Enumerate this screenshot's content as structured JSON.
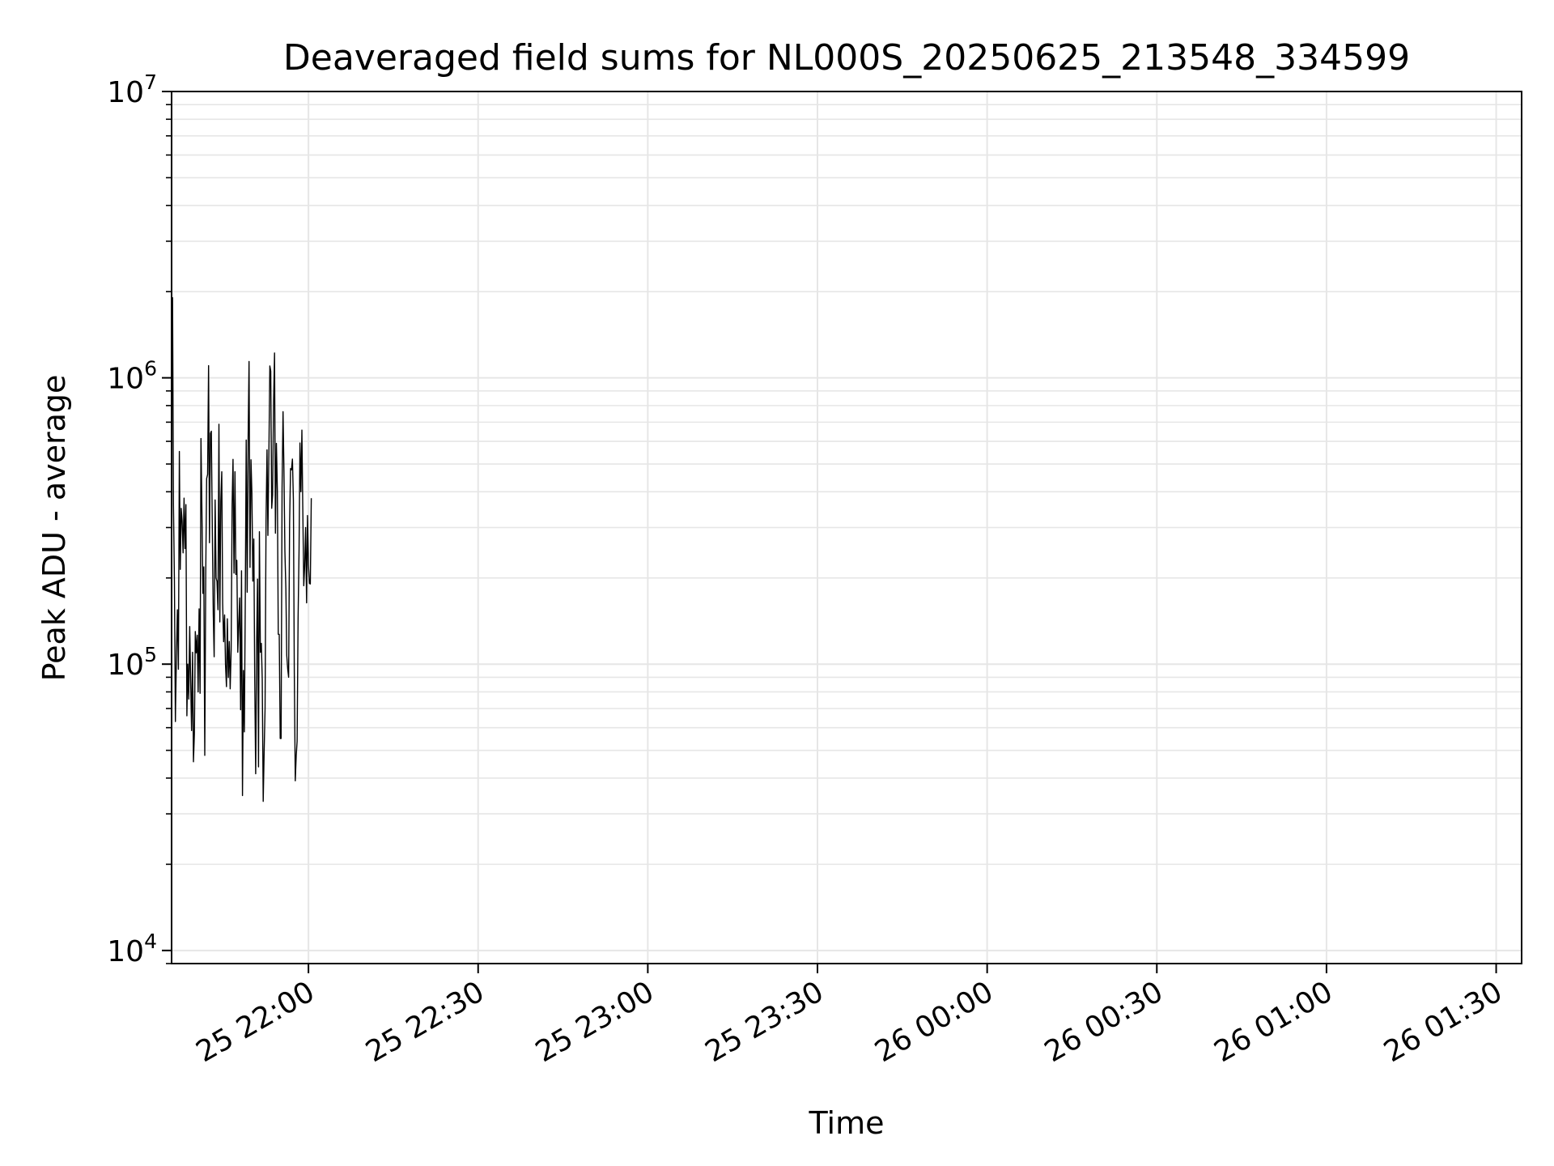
{
  "chart_data": {
    "type": "line",
    "title": "Deaveraged field sums for NL000S_20250625_213548_334599",
    "xlabel": "Time",
    "ylabel": "Peak ADU - average",
    "yscale": "log",
    "ylim": [
      9000,
      10000000
    ],
    "xlim": [
      "2025-06-25 21:35:48",
      "2025-06-26 01:34:30"
    ],
    "grid": true,
    "line_color": "#000000",
    "grid_color": "#e6e6e6",
    "x_ticks": [
      {
        "t": "2025-06-25 22:00",
        "label": "25 22:00"
      },
      {
        "t": "2025-06-25 22:30",
        "label": "25 22:30"
      },
      {
        "t": "2025-06-25 23:00",
        "label": "25 23:00"
      },
      {
        "t": "2025-06-25 23:30",
        "label": "25 23:30"
      },
      {
        "t": "2025-06-26 00:00",
        "label": "26 00:00"
      },
      {
        "t": "2025-06-26 00:30",
        "label": "26 00:30"
      },
      {
        "t": "2025-06-26 01:00",
        "label": "26 01:00"
      },
      {
        "t": "2025-06-26 01:30",
        "label": "26 01:30"
      }
    ],
    "y_ticks": [
      {
        "value": 10000,
        "base": "10",
        "exp": "4"
      },
      {
        "value": 100000,
        "base": "10",
        "exp": "5"
      },
      {
        "value": 1000000,
        "base": "10",
        "exp": "6"
      },
      {
        "value": 10000000,
        "base": "10",
        "exp": "7"
      }
    ],
    "series": [
      {
        "sample_interval_seconds": 10,
        "values": [
          [
            {
              "t": "2025-06-25 21:35:48",
              "v": 1600000
            },
            {
              "t": "2025-06-25 21:36:30",
              "v": 70000
            },
            {
              "t": "2025-06-25 21:37:30",
              "v": 350000
            },
            {
              "t": "2025-06-25 21:38:00",
              "v": 380000
            },
            {
              "t": "2025-06-25 21:38:40",
              "v": 100000
            },
            {
              "t": "2025-06-25 21:39:30",
              "v": 110000
            },
            {
              "t": "2025-06-25 21:40:00",
              "v": 130000
            },
            {
              "t": "2025-06-25 21:40:30",
              "v": 80000
            },
            {
              "t": "2025-06-25 21:41:10",
              "v": 340000
            },
            {
              "t": "2025-06-25 21:41:40",
              "v": 48000
            },
            {
              "t": "2025-06-25 21:42:10",
              "v": 460000
            },
            {
              "t": "2025-06-25 21:43:00",
              "v": 300000
            },
            {
              "t": "2025-06-25 21:43:40",
              "v": 200000
            },
            {
              "t": "2025-06-25 21:44:30",
              "v": 370000
            },
            {
              "t": "2025-06-25 21:45:20",
              "v": 100000
            },
            {
              "t": "2025-06-25 21:46:00",
              "v": 120000
            },
            {
              "t": "2025-06-25 21:46:30",
              "v": 360000
            },
            {
              "t": "2025-06-25 21:47:30",
              "v": 110000
            },
            {
              "t": "2025-06-25 21:48:30",
              "v": 95000
            },
            {
              "t": "2025-06-25 21:49:20",
              "v": 620000
            },
            {
              "t": "2025-06-25 21:50:30",
              "v": 90000
            },
            {
              "t": "2025-06-25 21:51:30",
              "v": 110000
            },
            {
              "t": "2025-06-25 21:52:20",
              "v": 70000
            },
            {
              "t": "2025-06-25 21:52:40",
              "v": 560000
            },
            {
              "t": "2025-06-25 21:53:30",
              "v": 350000
            },
            {
              "t": "2025-06-25 21:54:20",
              "v": 590000
            },
            {
              "t": "2025-06-25 21:55:00",
              "v": 55000
            },
            {
              "t": "2025-06-25 21:55:40",
              "v": 480000
            },
            {
              "t": "2025-06-25 21:56:30",
              "v": 90000
            },
            {
              "t": "2025-06-25 21:57:10",
              "v": 520000
            },
            {
              "t": "2025-06-25 21:57:50",
              "v": 48000
            },
            {
              "t": "2025-06-25 21:58:40",
              "v": 400000
            },
            {
              "t": "2025-06-25 21:59:30",
              "v": 300000
            },
            {
              "t": "2025-06-25 22:00:30",
              "v": 380000
            }
          ]
        ]
      }
    ]
  }
}
